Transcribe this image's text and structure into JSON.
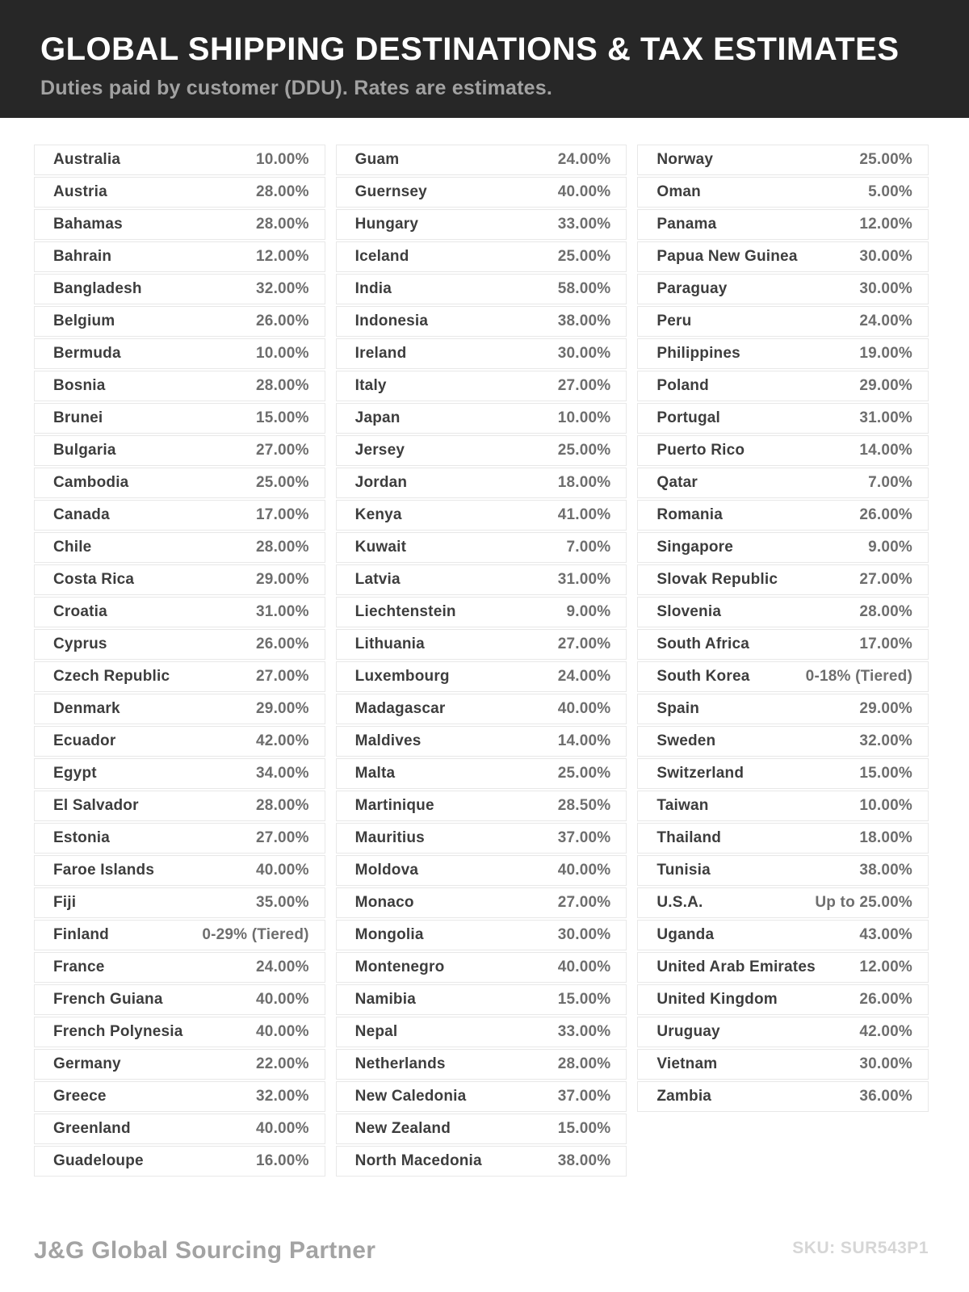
{
  "header": {
    "title": "GLOBAL SHIPPING DESTINATIONS & TAX ESTIMATES",
    "subtitle": "Duties paid by customer (DDU). Rates are estimates."
  },
  "table": {
    "columns": [
      {
        "rows": [
          {
            "country": "Australia",
            "rate": "10.00%"
          },
          {
            "country": "Austria",
            "rate": "28.00%"
          },
          {
            "country": "Bahamas",
            "rate": "28.00%"
          },
          {
            "country": "Bahrain",
            "rate": "12.00%"
          },
          {
            "country": "Bangladesh",
            "rate": "32.00%"
          },
          {
            "country": "Belgium",
            "rate": "26.00%"
          },
          {
            "country": "Bermuda",
            "rate": "10.00%"
          },
          {
            "country": "Bosnia",
            "rate": "28.00%"
          },
          {
            "country": "Brunei",
            "rate": "15.00%"
          },
          {
            "country": "Bulgaria",
            "rate": "27.00%"
          },
          {
            "country": "Cambodia",
            "rate": "25.00%"
          },
          {
            "country": "Canada",
            "rate": "17.00%"
          },
          {
            "country": "Chile",
            "rate": "28.00%"
          },
          {
            "country": "Costa Rica",
            "rate": "29.00%"
          },
          {
            "country": "Croatia",
            "rate": "31.00%"
          },
          {
            "country": "Cyprus",
            "rate": "26.00%"
          },
          {
            "country": "Czech Republic",
            "rate": "27.00%"
          },
          {
            "country": "Denmark",
            "rate": "29.00%"
          },
          {
            "country": "Ecuador",
            "rate": "42.00%"
          },
          {
            "country": "Egypt",
            "rate": "34.00%"
          },
          {
            "country": "El Salvador",
            "rate": "28.00%"
          },
          {
            "country": "Estonia",
            "rate": "27.00%"
          },
          {
            "country": "Faroe Islands",
            "rate": "40.00%"
          },
          {
            "country": "Fiji",
            "rate": "35.00%"
          },
          {
            "country": "Finland",
            "rate": "0-29% (Tiered)"
          },
          {
            "country": "France",
            "rate": "24.00%"
          },
          {
            "country": "French Guiana",
            "rate": "40.00%"
          },
          {
            "country": "French Polynesia",
            "rate": "40.00%"
          },
          {
            "country": "Germany",
            "rate": "22.00%"
          },
          {
            "country": "Greece",
            "rate": "32.00%"
          },
          {
            "country": "Greenland",
            "rate": "40.00%"
          },
          {
            "country": "Guadeloupe",
            "rate": "16.00%"
          }
        ]
      },
      {
        "rows": [
          {
            "country": "Guam",
            "rate": "24.00%"
          },
          {
            "country": "Guernsey",
            "rate": "40.00%"
          },
          {
            "country": "Hungary",
            "rate": "33.00%"
          },
          {
            "country": "Iceland",
            "rate": "25.00%"
          },
          {
            "country": "India",
            "rate": "58.00%"
          },
          {
            "country": "Indonesia",
            "rate": "38.00%"
          },
          {
            "country": "Ireland",
            "rate": "30.00%"
          },
          {
            "country": "Italy",
            "rate": "27.00%"
          },
          {
            "country": "Japan",
            "rate": "10.00%"
          },
          {
            "country": "Jersey",
            "rate": "25.00%"
          },
          {
            "country": "Jordan",
            "rate": "18.00%"
          },
          {
            "country": "Kenya",
            "rate": "41.00%"
          },
          {
            "country": "Kuwait",
            "rate": "7.00%"
          },
          {
            "country": "Latvia",
            "rate": "31.00%"
          },
          {
            "country": "Liechtenstein",
            "rate": "9.00%"
          },
          {
            "country": "Lithuania",
            "rate": "27.00%"
          },
          {
            "country": "Luxembourg",
            "rate": "24.00%"
          },
          {
            "country": "Madagascar",
            "rate": "40.00%"
          },
          {
            "country": "Maldives",
            "rate": "14.00%"
          },
          {
            "country": "Malta",
            "rate": "25.00%"
          },
          {
            "country": "Martinique",
            "rate": "28.50%"
          },
          {
            "country": "Mauritius",
            "rate": "37.00%"
          },
          {
            "country": "Moldova",
            "rate": "40.00%"
          },
          {
            "country": "Monaco",
            "rate": "27.00%"
          },
          {
            "country": "Mongolia",
            "rate": "30.00%"
          },
          {
            "country": "Montenegro",
            "rate": "40.00%"
          },
          {
            "country": "Namibia",
            "rate": "15.00%"
          },
          {
            "country": "Nepal",
            "rate": "33.00%"
          },
          {
            "country": "Netherlands",
            "rate": "28.00%"
          },
          {
            "country": "New Caledonia",
            "rate": "37.00%"
          },
          {
            "country": "New Zealand",
            "rate": "15.00%"
          },
          {
            "country": "North Macedonia",
            "rate": "38.00%"
          }
        ]
      },
      {
        "rows": [
          {
            "country": "Norway",
            "rate": "25.00%"
          },
          {
            "country": "Oman",
            "rate": "5.00%"
          },
          {
            "country": "Panama",
            "rate": "12.00%"
          },
          {
            "country": "Papua New Guinea",
            "rate": "30.00%"
          },
          {
            "country": "Paraguay",
            "rate": "30.00%"
          },
          {
            "country": "Peru",
            "rate": "24.00%"
          },
          {
            "country": "Philippines",
            "rate": "19.00%"
          },
          {
            "country": "Poland",
            "rate": "29.00%"
          },
          {
            "country": "Portugal",
            "rate": "31.00%"
          },
          {
            "country": "Puerto Rico",
            "rate": "14.00%"
          },
          {
            "country": "Qatar",
            "rate": "7.00%"
          },
          {
            "country": "Romania",
            "rate": "26.00%"
          },
          {
            "country": "Singapore",
            "rate": "9.00%"
          },
          {
            "country": "Slovak Republic",
            "rate": "27.00%"
          },
          {
            "country": "Slovenia",
            "rate": "28.00%"
          },
          {
            "country": "South Africa",
            "rate": "17.00%"
          },
          {
            "country": "South Korea",
            "rate": "0-18% (Tiered)"
          },
          {
            "country": "Spain",
            "rate": "29.00%"
          },
          {
            "country": "Sweden",
            "rate": "32.00%"
          },
          {
            "country": "Switzerland",
            "rate": "15.00%"
          },
          {
            "country": "Taiwan",
            "rate": "10.00%"
          },
          {
            "country": "Thailand",
            "rate": "18.00%"
          },
          {
            "country": "Tunisia",
            "rate": "38.00%"
          },
          {
            "country": "U.S.A.",
            "rate": "Up to 25.00%"
          },
          {
            "country": "Uganda",
            "rate": "43.00%"
          },
          {
            "country": "United Arab Emirates",
            "rate": "12.00%"
          },
          {
            "country": "United Kingdom",
            "rate": "26.00%"
          },
          {
            "country": "Uruguay",
            "rate": "42.00%"
          },
          {
            "country": "Vietnam",
            "rate": "30.00%"
          },
          {
            "country": "Zambia",
            "rate": "36.00%"
          }
        ]
      }
    ]
  },
  "footer": {
    "brand": "J&G Global Sourcing Partner",
    "sku": "SKU: SUR543P1"
  },
  "colors": {
    "header_bg": "#272727",
    "title": "#ffffff",
    "subtitle": "#a2a2a2",
    "country": "#3d3d3d",
    "rate": "#6e6e6e",
    "row_border": "#e8e8e8",
    "brand": "#a3a3a3",
    "sku": "#d6d6d6"
  }
}
